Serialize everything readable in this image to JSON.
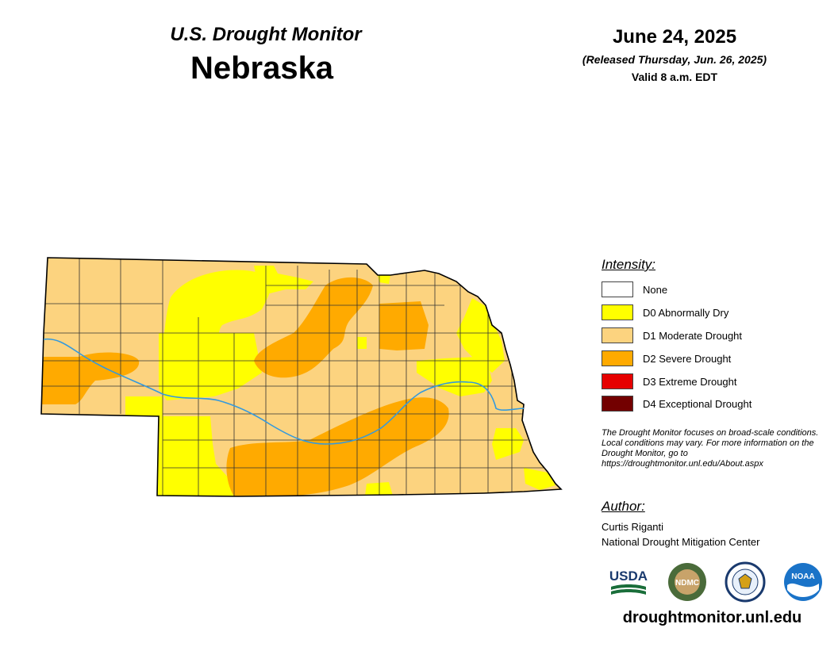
{
  "header": {
    "title": "U.S. Drought Monitor",
    "state": "Nebraska",
    "date": "June 24, 2025",
    "released": "(Released Thursday, Jun. 26, 2025)",
    "valid": "Valid 8 a.m. EDT"
  },
  "legend": {
    "heading": "Intensity:",
    "items": [
      {
        "label": "None",
        "color": "#ffffff"
      },
      {
        "label": "D0 Abnormally Dry",
        "color": "#ffff00"
      },
      {
        "label": "D1 Moderate Drought",
        "color": "#fcd37f"
      },
      {
        "label": "D2 Severe Drought",
        "color": "#ffaa00"
      },
      {
        "label": "D3 Extreme Drought",
        "color": "#e60000"
      },
      {
        "label": "D4 Exceptional Drought",
        "color": "#730000"
      }
    ]
  },
  "disclaimer": "The Drought Monitor focuses on broad-scale conditions. Local conditions may vary. For more information on the Drought Monitor, go to https://droughtmonitor.unl.edu/About.aspx",
  "author": {
    "heading": "Author:",
    "name": "Curtis Riganti",
    "org": "National Drought Mitigation Center"
  },
  "logos": [
    {
      "name": "usda-logo",
      "text": "USDA"
    },
    {
      "name": "ndmc-logo",
      "text": "NDMC"
    },
    {
      "name": "doc-seal-logo",
      "text": ""
    },
    {
      "name": "noaa-logo",
      "text": "NOAA"
    }
  ],
  "footer": {
    "url": "droughtmonitor.unl.edu"
  },
  "map": {
    "river_color": "#3399dd",
    "county_line_color": "#333333"
  }
}
